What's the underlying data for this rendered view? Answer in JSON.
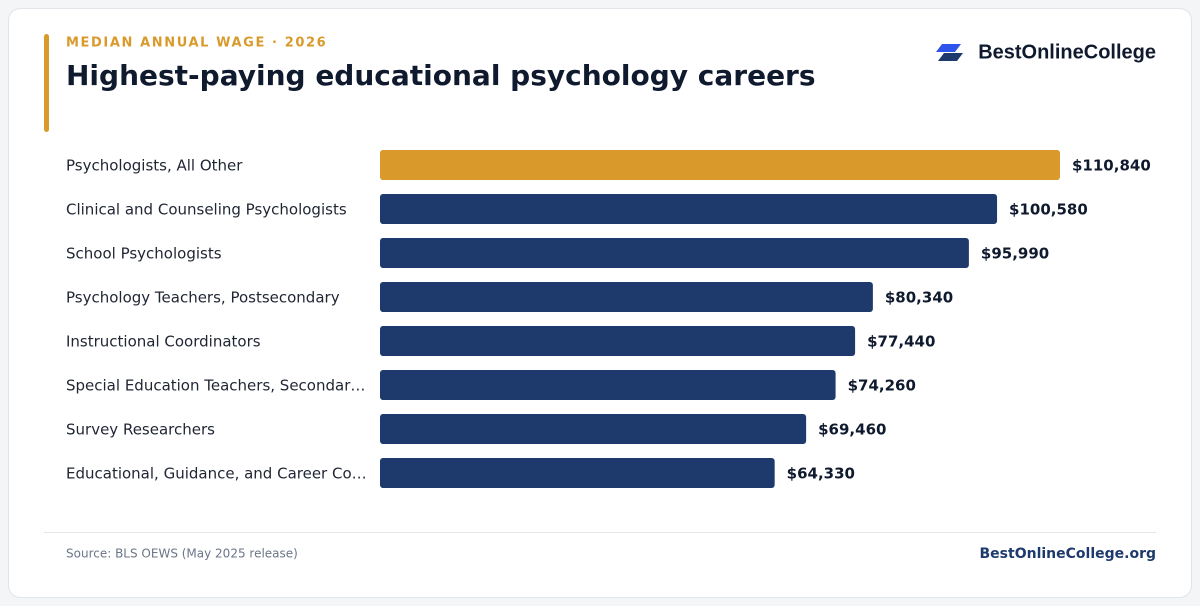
{
  "chart_data": {
    "type": "bar",
    "subtitle": "MEDIAN ANNUAL WAGE · 2026",
    "title": "Highest-paying educational psychology careers",
    "brand": "BestOnlineCollege",
    "categories": [
      "Psychologists, All Other",
      "Clinical and Counseling Psychologists",
      "School Psychologists",
      "Psychology Teachers, Postsecondary",
      "Instructional Coordinators",
      "Special Education Teachers, Secondar…",
      "Survey Researchers",
      "Educational, Guidance, and Career Co…"
    ],
    "values": [
      110840,
      100580,
      95990,
      80340,
      77440,
      74260,
      69460,
      64330
    ],
    "value_labels": [
      "$110,840",
      "$100,580",
      "$95,990",
      "$80,340",
      "$77,440",
      "$74,260",
      "$69,460",
      "$64,330"
    ],
    "colors": [
      "#d99a2b",
      "#1e3a6d",
      "#1e3a6d",
      "#1e3a6d",
      "#1e3a6d",
      "#1e3a6d",
      "#1e3a6d",
      "#1e3a6d"
    ],
    "source": "Source: BLS OEWS (May 2025 release)",
    "footer_brand": "BestOnlineCollege.org"
  }
}
